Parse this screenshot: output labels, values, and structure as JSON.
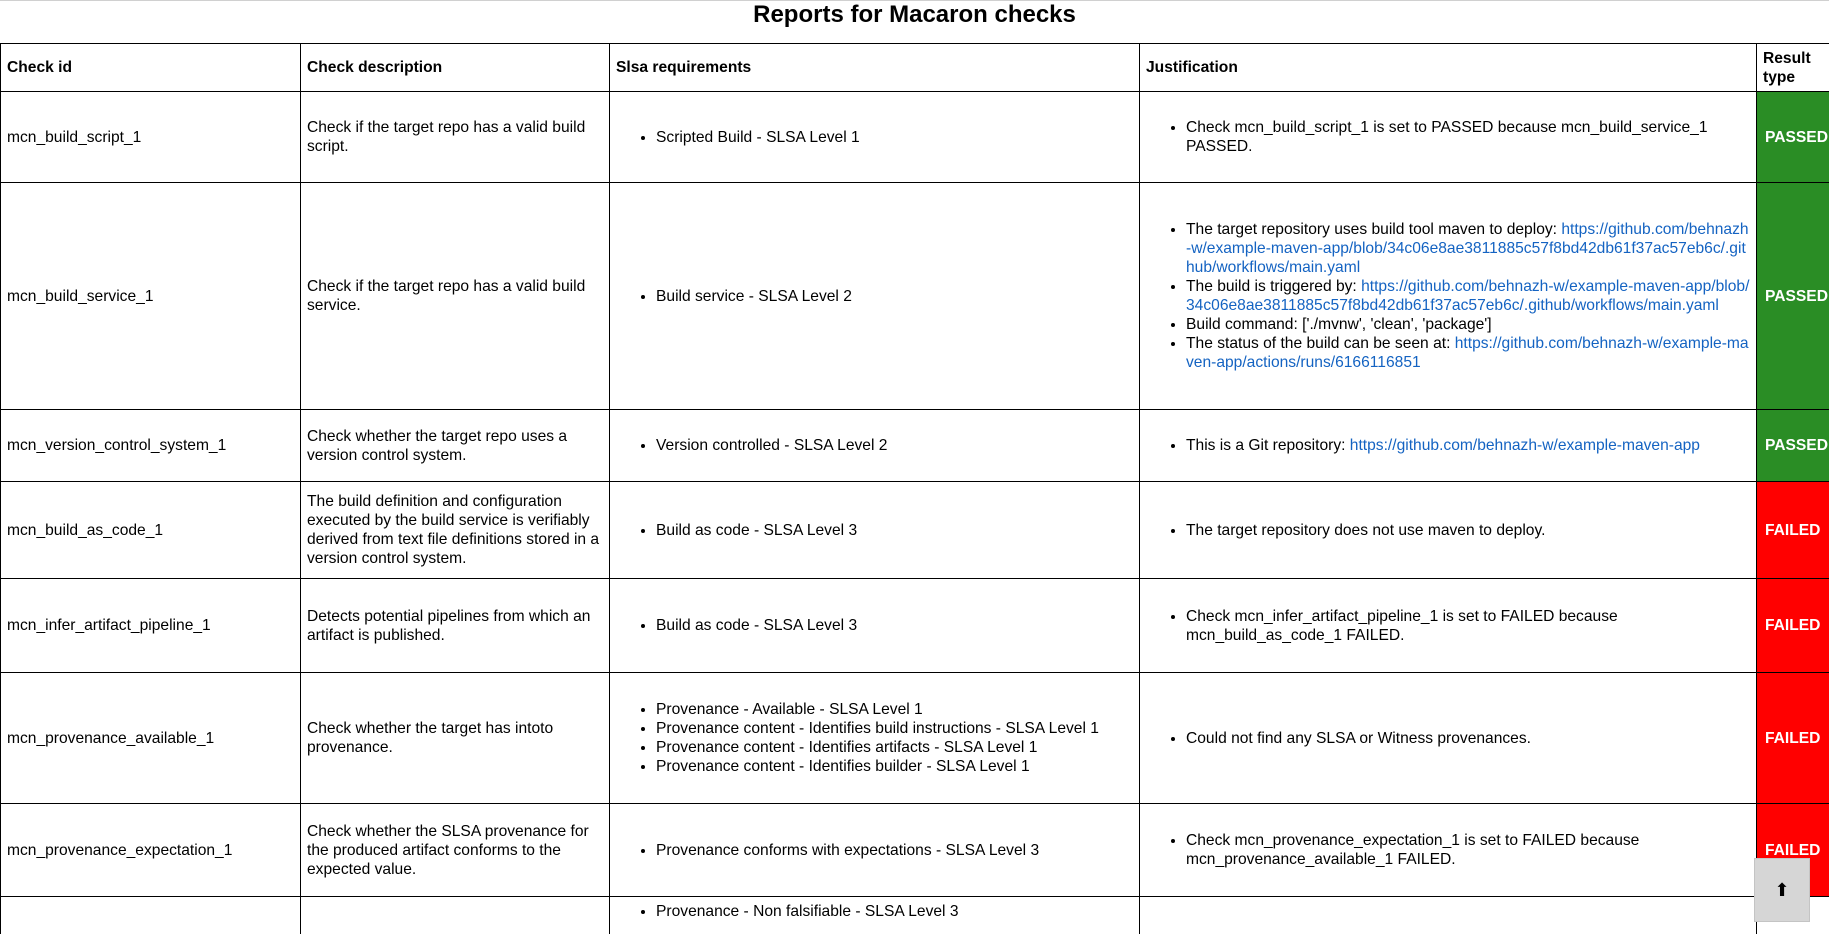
{
  "page": {
    "title": "Reports for Macaron checks"
  },
  "table": {
    "headers": [
      "Check id",
      "Check description",
      "Slsa requirements",
      "Justification",
      "Result type"
    ],
    "rows": [
      {
        "id": "mcn_build_script_1",
        "description": "Check if the target repo has a valid build script.",
        "requirements": [
          "Scripted Build - SLSA Level 1"
        ],
        "justification": [
          {
            "text": "Check mcn_build_script_1 is set to PASSED because mcn_build_service_1 PASSED.",
            "link": ""
          }
        ],
        "result": "PASSED"
      },
      {
        "id": "mcn_build_service_1",
        "description": "Check if the target repo has a valid build service.",
        "requirements": [
          "Build service - SLSA Level 2"
        ],
        "justification": [
          {
            "text": "The target repository uses build tool maven to deploy: ",
            "link": "https://github.com/behnazh-w/example-maven-app/blob/34c06e8ae3811885c57f8bd42db61f37ac57eb6c/.github/workflows/main.yaml"
          },
          {
            "text": "The build is triggered by: ",
            "link": "https://github.com/behnazh-w/example-maven-app/blob/34c06e8ae3811885c57f8bd42db61f37ac57eb6c/.github/workflows/main.yaml"
          },
          {
            "text": "Build command: ['./mvnw', 'clean', 'package']",
            "link": ""
          },
          {
            "text": "The status of the build can be seen at: ",
            "link": "https://github.com/behnazh-w/example-maven-app/actions/runs/6166116851"
          }
        ],
        "result": "PASSED"
      },
      {
        "id": "mcn_version_control_system_1",
        "description": "Check whether the target repo uses a version control system.",
        "requirements": [
          "Version controlled - SLSA Level 2"
        ],
        "justification": [
          {
            "text": "This is a Git repository: ",
            "link": "https://github.com/behnazh-w/example-maven-app"
          }
        ],
        "result": "PASSED"
      },
      {
        "id": "mcn_build_as_code_1",
        "description": "The build definition and configuration executed by the build service is verifiably derived from text file definitions stored in a version control system.",
        "requirements": [
          "Build as code - SLSA Level 3"
        ],
        "justification": [
          {
            "text": "The target repository does not use maven to deploy.",
            "link": ""
          }
        ],
        "result": "FAILED"
      },
      {
        "id": "mcn_infer_artifact_pipeline_1",
        "description": "Detects potential pipelines from which an artifact is published.",
        "requirements": [
          "Build as code - SLSA Level 3"
        ],
        "justification": [
          {
            "text": "Check mcn_infer_artifact_pipeline_1 is set to FAILED because mcn_build_as_code_1 FAILED.",
            "link": ""
          }
        ],
        "result": "FAILED"
      },
      {
        "id": "mcn_provenance_available_1",
        "description": "Check whether the target has intoto provenance.",
        "requirements": [
          "Provenance - Available - SLSA Level 1",
          "Provenance content - Identifies build instructions - SLSA Level 1",
          "Provenance content - Identifies artifacts - SLSA Level 1",
          "Provenance content - Identifies builder - SLSA Level 1"
        ],
        "justification": [
          {
            "text": "Could not find any SLSA or Witness provenances.",
            "link": ""
          }
        ],
        "result": "FAILED"
      },
      {
        "id": "mcn_provenance_expectation_1",
        "description": "Check whether the SLSA provenance for the produced artifact conforms to the expected value.",
        "requirements": [
          "Provenance conforms with expectations - SLSA Level 3"
        ],
        "justification": [
          {
            "text": "Check mcn_provenance_expectation_1 is set to FAILED because mcn_provenance_available_1 FAILED.",
            "link": ""
          }
        ],
        "result": "FAILED"
      },
      {
        "id": "",
        "description": "",
        "requirements": [
          "Provenance - Non falsifiable - SLSA Level 3"
        ],
        "justification": [],
        "result": ""
      }
    ]
  },
  "scroll_top": {
    "icon": "arrow-up-icon",
    "glyph": "⬆"
  },
  "colors": {
    "passed": "#2a8d25",
    "failed": "#ff0000",
    "link": "#1463c2"
  }
}
